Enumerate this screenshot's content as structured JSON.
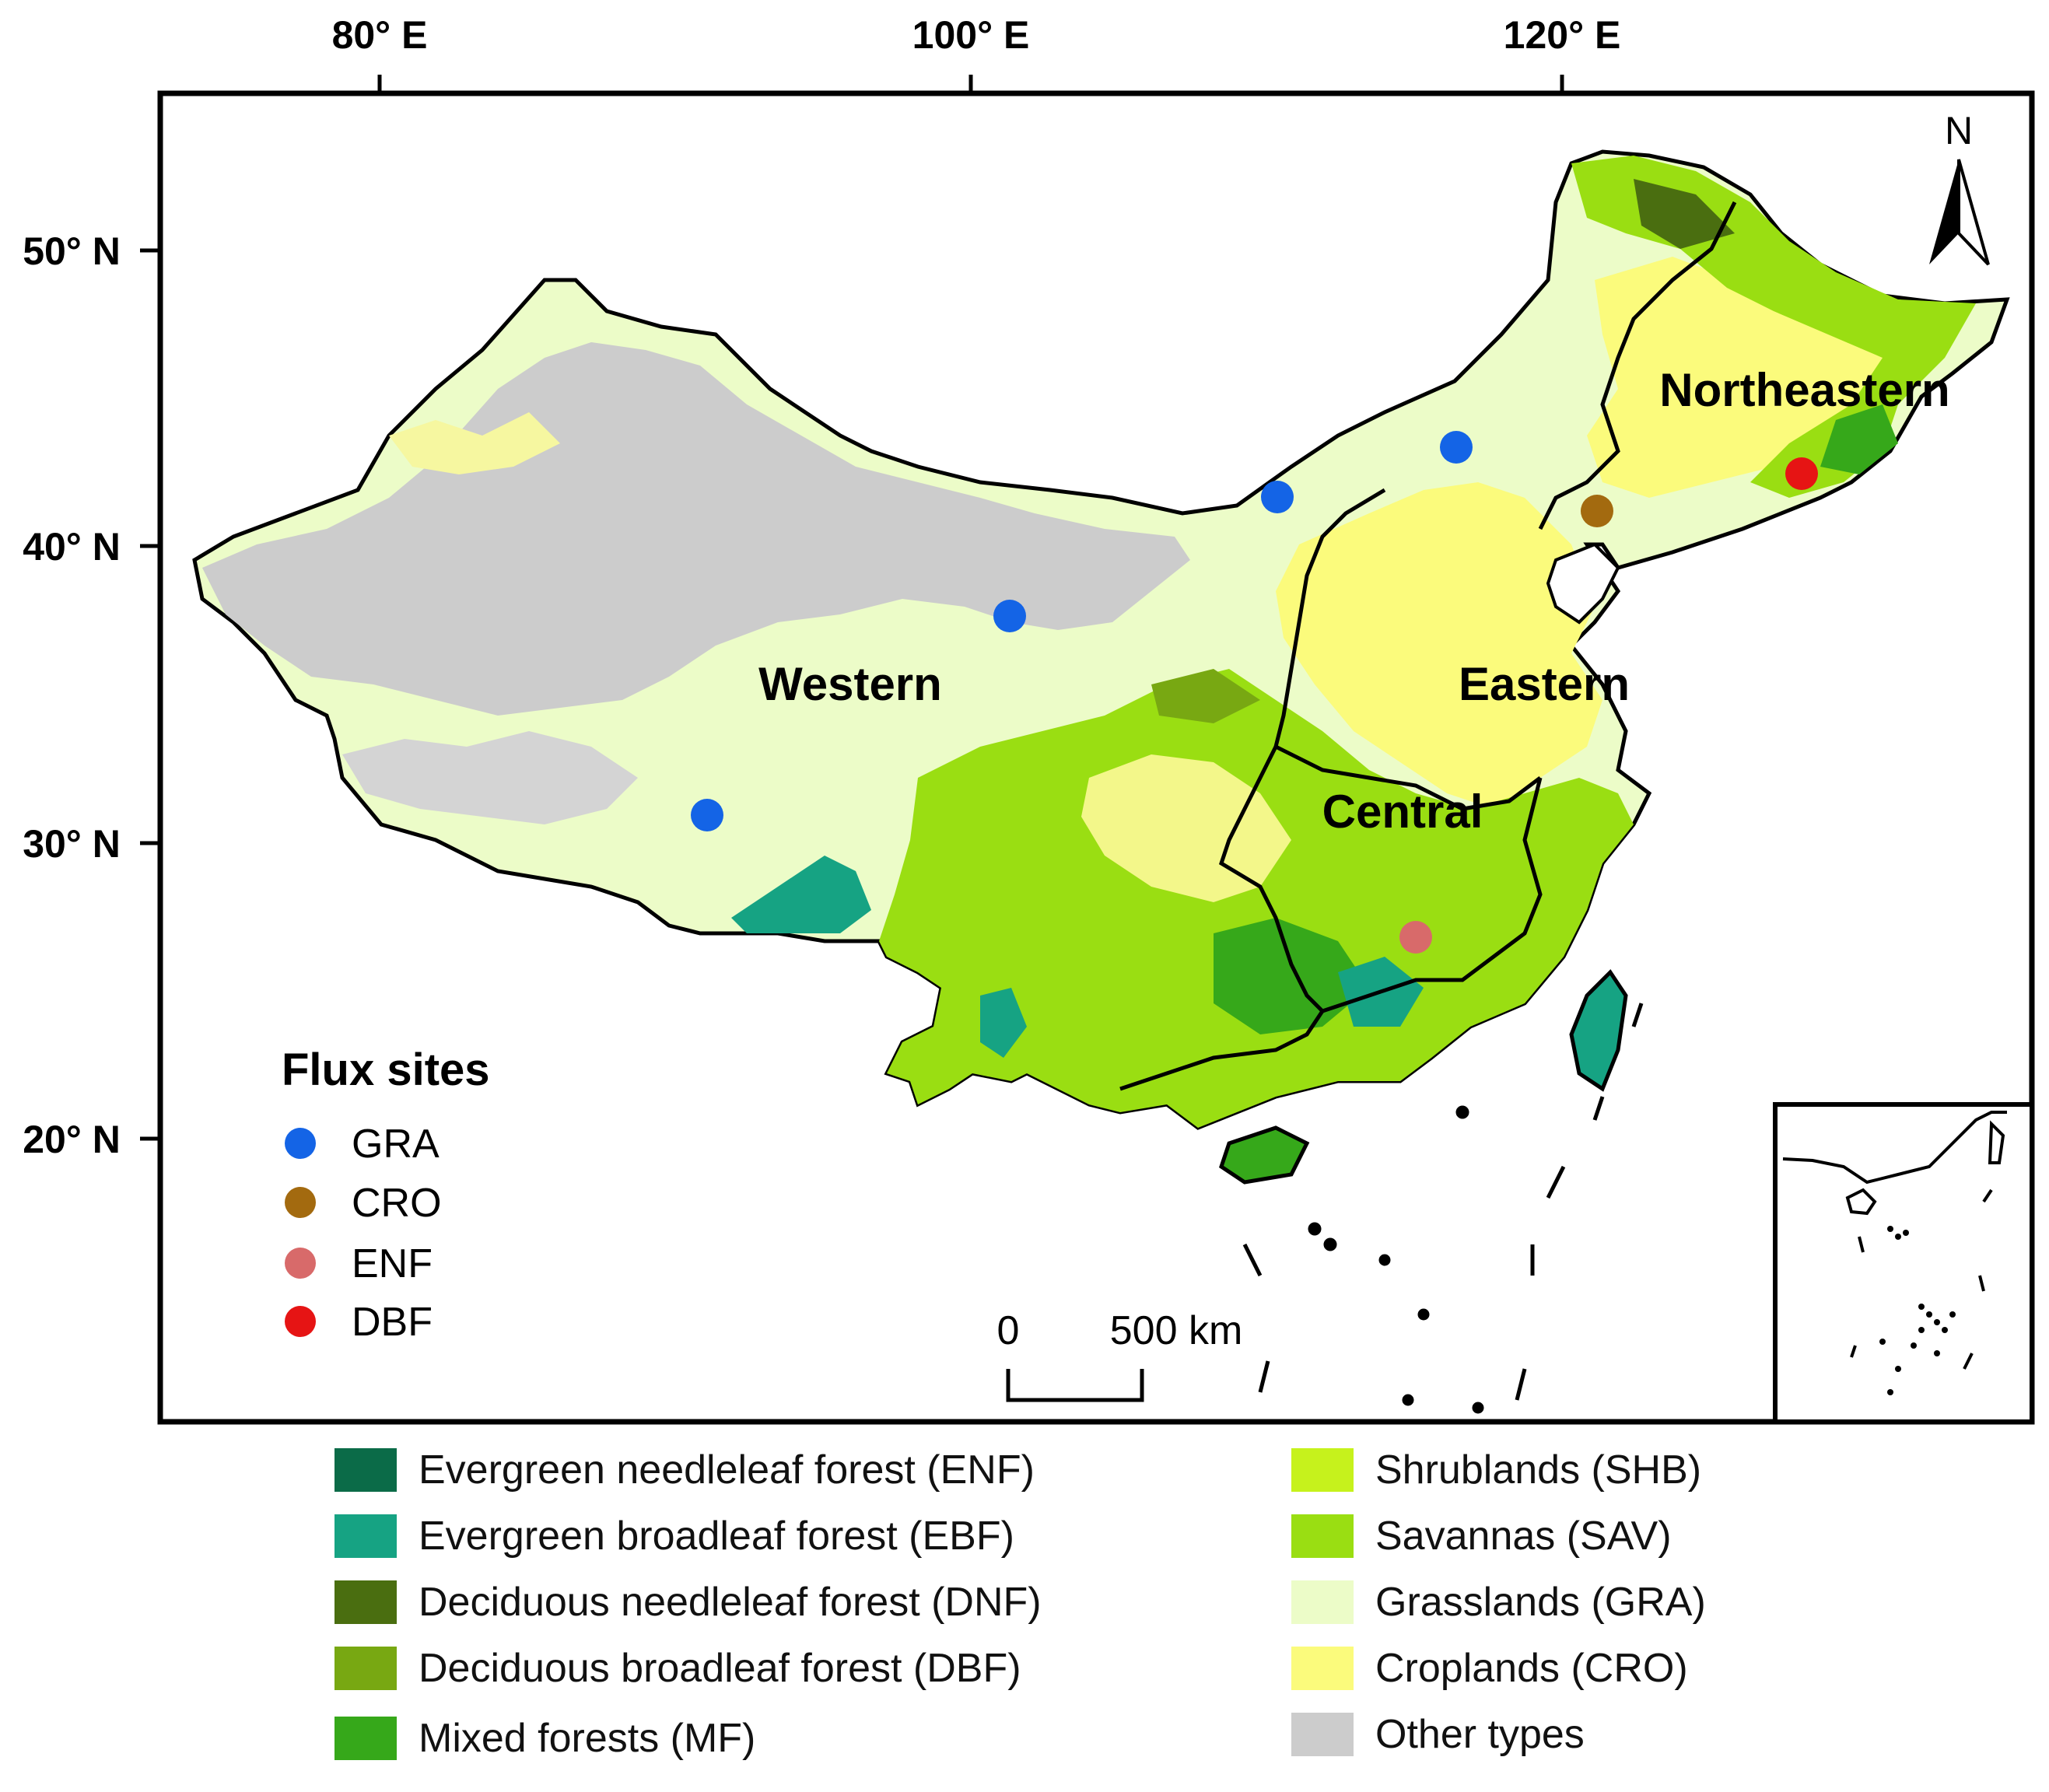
{
  "axes": {
    "lon_labels": [
      "80° E",
      "100° E",
      "120° E"
    ],
    "lat_labels": [
      "50° N",
      "40° N",
      "30° N",
      "20° N"
    ]
  },
  "north_arrow": {
    "label": "N",
    "icon": "north-arrow-icon"
  },
  "regions": [
    "Western",
    "Northeastern",
    "Eastern",
    "Central"
  ],
  "scale_bar": {
    "start": "0",
    "end": "500 km"
  },
  "flux_sites": {
    "title": "Flux sites",
    "types": [
      {
        "code": "GRA",
        "color": "#1464e6"
      },
      {
        "code": "CRO",
        "color": "#a36a0f"
      },
      {
        "code": "ENF",
        "color": "#d86a6a"
      },
      {
        "code": "DBF",
        "color": "#e61414"
      }
    ]
  },
  "land_cover_legend": [
    {
      "label": "Evergreen needleleaf forest (ENF)",
      "color": "#0b6b48"
    },
    {
      "label": "Evergreen broadleaf forest (EBF)",
      "color": "#16a383"
    },
    {
      "label": "Deciduous needleleaf forest (DNF)",
      "color": "#4a6e10"
    },
    {
      "label": "Deciduous broadleaf forest (DBF)",
      "color": "#78a812"
    },
    {
      "label": "Mixed forests (MF)",
      "color": "#36a81a"
    },
    {
      "label": "Shrublands (SHB)",
      "color": "#c6f21c"
    },
    {
      "label": "Savannas (SAV)",
      "color": "#9ade12"
    },
    {
      "label": "Grasslands (GRA)",
      "color": "#ecfcc8"
    },
    {
      "label": "Croplands (CRO)",
      "color": "#fbfb7c"
    },
    {
      "label": "Other types",
      "color": "#cccccc"
    }
  ]
}
